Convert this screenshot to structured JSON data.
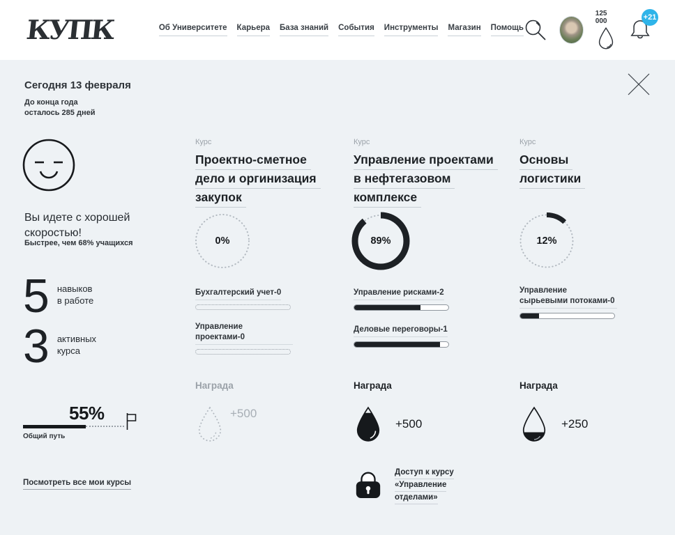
{
  "header": {
    "logo": "КУПК",
    "nav": [
      {
        "label": "Об Университете"
      },
      {
        "label": "Карьера"
      },
      {
        "label": "База знаний"
      },
      {
        "label": "События"
      },
      {
        "label": "Инструменты"
      },
      {
        "label": "Магазин"
      },
      {
        "label": "Помощь"
      }
    ],
    "balance": "125 000",
    "notifications_badge": "+21",
    "badge_color": "#2fb4e9"
  },
  "panel": {
    "date_title": "Сегодня 13 февраля",
    "days_left_line1": "До конца года",
    "days_left_line2": "осталось 285 дней",
    "pace_title": "Вы идете с хорошей скоростью!",
    "pace_subtitle": "Быстрее, чем 68% учащихся",
    "stats": [
      {
        "value": "5",
        "label_line1": "навыков",
        "label_line2": "в работе"
      },
      {
        "value": "3",
        "label_line1": "активных",
        "label_line2": "курса"
      }
    ],
    "overall_progress": {
      "percent": "55%",
      "label": "Общий путь",
      "value": 55
    },
    "all_courses_link": "Посмотреть все мои курсы"
  },
  "courses": [
    {
      "kind": "Курс",
      "title_lines": [
        "Проектно-сметное",
        "дело и оргинизация",
        "закупок"
      ],
      "progress_percent": "0%",
      "progress_value": 0,
      "skills": [
        {
          "name": "Бухгалтерский учет-0",
          "value": 0
        },
        {
          "name": "Управление проектами-0",
          "value": 0
        }
      ],
      "reward": {
        "label": "Награда",
        "points": "+500",
        "state": "locked"
      }
    },
    {
      "kind": "Курс",
      "title_lines": [
        "Управление проектами",
        "в нефтегазовом",
        "комплексе"
      ],
      "progress_percent": "89%",
      "progress_value": 89,
      "skills": [
        {
          "name": "Управление рисками-2",
          "value": 70
        },
        {
          "name": "Деловые переговоры-1",
          "value": 91
        }
      ],
      "reward": {
        "label": "Награда",
        "points": "+500",
        "state": "active"
      },
      "bonus": {
        "lines": [
          "Доступ к курсу",
          "«Управление",
          "отделами»"
        ]
      }
    },
    {
      "kind": "Курс",
      "title_lines": [
        "Основы",
        "логистики"
      ],
      "progress_percent": "12%",
      "progress_value": 12,
      "skills": [
        {
          "name": "Управление сырьевыми потоками-0",
          "value": 20
        }
      ],
      "reward": {
        "label": "Награда",
        "points": "+250",
        "state": "partial"
      }
    }
  ]
}
